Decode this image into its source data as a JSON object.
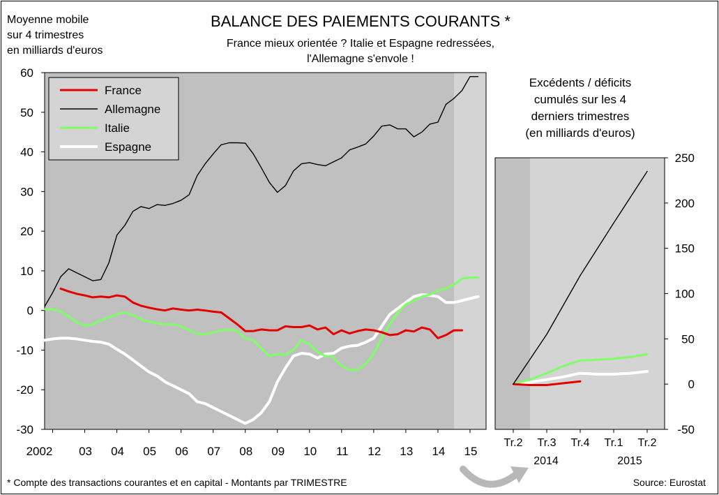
{
  "header": {
    "unit_line1": "Moyenne mobile",
    "unit_line2": "sur 4 trimestres",
    "unit_line3": "en milliards d'euros",
    "title": "BALANCE DES PAIEMENTS COURANTS *",
    "subtitle_line1": "France mieux orientée ? Italie et Espagne redressées,",
    "subtitle_line2": "l'Allemagne s'envole !"
  },
  "footer": {
    "footnote": "* Compte des transactions courantes et en capital - Montants par TRIMESTRE",
    "source": "Source: Eurostat"
  },
  "colors": {
    "France": "#e30000",
    "Allemagne": "#000000",
    "Italie": "#7fff66",
    "Espagne": "#ffffff",
    "plot_bg": "#c0c0c0",
    "plot_bg_light": "#d4d4d4"
  },
  "chart_data": [
    {
      "type": "line",
      "title": "",
      "ylabel": "Moyenne mobile sur 4 trimestres en milliards d'euros",
      "ylim": [
        -30,
        60
      ],
      "yticks": [
        -30,
        -20,
        -10,
        0,
        10,
        20,
        30,
        40,
        50,
        60
      ],
      "x_tick_labels": [
        "2002",
        "03",
        "04",
        "05",
        "06",
        "07",
        "08",
        "09",
        "10",
        "11",
        "12",
        "13",
        "14",
        "15"
      ],
      "xlim": [
        2001.75,
        2015.5
      ],
      "grid": false,
      "legend": "top-left",
      "series": [
        {
          "name": "France",
          "x": [
            2002.25,
            2002.5,
            2002.75,
            2003,
            2003.25,
            2003.5,
            2003.75,
            2004,
            2004.25,
            2004.5,
            2004.75,
            2005,
            2005.25,
            2005.5,
            2005.75,
            2006,
            2006.25,
            2006.5,
            2006.75,
            2007,
            2007.25,
            2007.5,
            2007.75,
            2008,
            2008.25,
            2008.5,
            2008.75,
            2009,
            2009.25,
            2009.5,
            2009.75,
            2010,
            2010.25,
            2010.5,
            2010.75,
            2011,
            2011.25,
            2011.5,
            2011.75,
            2012,
            2012.25,
            2012.5,
            2012.75,
            2013,
            2013.25,
            2013.5,
            2013.75,
            2014,
            2014.25,
            2014.5,
            2014.75
          ],
          "values": [
            5.5,
            4.8,
            4.2,
            3.8,
            3.3,
            3.5,
            3.3,
            3.8,
            3.5,
            2,
            1.2,
            0.7,
            0.3,
            0,
            0.5,
            0.2,
            0,
            0.2,
            0,
            -0.3,
            -0.5,
            -2,
            -3.5,
            -5.2,
            -5.2,
            -4.8,
            -5,
            -5,
            -4,
            -4.2,
            -4.2,
            -3.8,
            -4.8,
            -4.3,
            -6,
            -5,
            -5.8,
            -5.2,
            -4.8,
            -5,
            -5.5,
            -6.2,
            -6,
            -5,
            -5.3,
            -4.3,
            -4.8,
            -7,
            -6.2,
            -5,
            -5
          ]
        },
        {
          "name": "Allemagne",
          "x": [
            2001.75,
            2002,
            2002.25,
            2002.5,
            2002.75,
            2003,
            2003.25,
            2003.5,
            2003.75,
            2004,
            2004.25,
            2004.5,
            2004.75,
            2005,
            2005.25,
            2005.5,
            2005.75,
            2006,
            2006.25,
            2006.5,
            2006.75,
            2007,
            2007.25,
            2007.5,
            2007.75,
            2008,
            2008.25,
            2008.5,
            2008.75,
            2009,
            2009.25,
            2009.5,
            2009.75,
            2010,
            2010.25,
            2010.5,
            2010.75,
            2011,
            2011.25,
            2011.5,
            2011.75,
            2012,
            2012.25,
            2012.5,
            2012.75,
            2013,
            2013.25,
            2013.5,
            2013.75,
            2014,
            2014.25,
            2014.5,
            2014.75,
            2015,
            2015.25
          ],
          "values": [
            1,
            4.5,
            8.5,
            10.5,
            9.5,
            8.5,
            7.5,
            7.8,
            12,
            19,
            21.5,
            25,
            26.2,
            25.7,
            26.7,
            26.5,
            27,
            27.8,
            29.2,
            34,
            37,
            39.5,
            41.8,
            42.3,
            42.3,
            42.2,
            39.5,
            36,
            32.3,
            29.8,
            31.5,
            35.2,
            37,
            37.3,
            36.8,
            36.5,
            37.5,
            38.5,
            40.5,
            41.2,
            42,
            44,
            46.5,
            46.8,
            45.8,
            45.8,
            43.8,
            45,
            47,
            47.5,
            52,
            53.5,
            55.5,
            59,
            59
          ]
        },
        {
          "name": "Italie",
          "x": [
            2001.75,
            2002,
            2002.25,
            2002.5,
            2002.75,
            2003,
            2003.25,
            2003.5,
            2003.75,
            2004,
            2004.25,
            2004.5,
            2004.75,
            2005,
            2005.25,
            2005.5,
            2005.75,
            2006,
            2006.25,
            2006.5,
            2006.75,
            2007,
            2007.25,
            2007.5,
            2007.75,
            2008,
            2008.25,
            2008.5,
            2008.75,
            2009,
            2009.25,
            2009.5,
            2009.75,
            2010,
            2010.25,
            2010.5,
            2010.75,
            2011,
            2011.25,
            2011.5,
            2011.75,
            2012,
            2012.25,
            2012.5,
            2012.75,
            2013,
            2013.25,
            2013.5,
            2013.75,
            2014,
            2014.25,
            2014.5,
            2014.75,
            2015,
            2015.25
          ],
          "values": [
            0.3,
            0.3,
            -0.2,
            -1.5,
            -3,
            -3.8,
            -3.5,
            -2.5,
            -1.8,
            -1,
            -0.5,
            -1.2,
            -2.2,
            -2.8,
            -3.2,
            -3.5,
            -3.5,
            -4,
            -5,
            -5.8,
            -6,
            -5.5,
            -5,
            -4.8,
            -5.2,
            -7,
            -7.5,
            -9.5,
            -11.5,
            -11,
            -11.2,
            -10,
            -7.5,
            -8.5,
            -10.5,
            -11.5,
            -11.8,
            -14,
            -15,
            -15,
            -13.5,
            -11,
            -7,
            -3.5,
            -0.5,
            1.5,
            2.5,
            3.5,
            4,
            5,
            5.5,
            6.5,
            8,
            8.3,
            8.3
          ]
        },
        {
          "name": "Espagne",
          "x": [
            2001.75,
            2002,
            2002.25,
            2002.5,
            2002.75,
            2003,
            2003.25,
            2003.5,
            2003.75,
            2004,
            2004.25,
            2004.5,
            2004.75,
            2005,
            2005.25,
            2005.5,
            2005.75,
            2006,
            2006.25,
            2006.5,
            2006.75,
            2007,
            2007.25,
            2007.5,
            2007.75,
            2008,
            2008.25,
            2008.5,
            2008.75,
            2009,
            2009.25,
            2009.5,
            2009.75,
            2010,
            2010.25,
            2010.5,
            2010.75,
            2011,
            2011.25,
            2011.5,
            2011.75,
            2012,
            2012.25,
            2012.5,
            2012.75,
            2013,
            2013.25,
            2013.5,
            2013.75,
            2014,
            2014.25,
            2014.5,
            2014.75,
            2015,
            2015.25
          ],
          "values": [
            -7.5,
            -7.2,
            -7,
            -7,
            -7.2,
            -7.5,
            -7.8,
            -8,
            -8.5,
            -9.8,
            -11,
            -12.5,
            -14,
            -15.5,
            -16.5,
            -18,
            -19,
            -20,
            -21,
            -23,
            -23.5,
            -24.5,
            -25.5,
            -26.5,
            -27.5,
            -28.5,
            -27.5,
            -25.8,
            -23,
            -18,
            -14.5,
            -11.5,
            -10.8,
            -11,
            -12,
            -11,
            -10.8,
            -9.5,
            -9,
            -8.8,
            -8,
            -7,
            -4,
            -1,
            0.5,
            2,
            3.5,
            4,
            3.8,
            3.5,
            2,
            2,
            2.5,
            3,
            3.5
          ]
        }
      ],
      "projection_start": 2014.5
    },
    {
      "type": "line",
      "title": "Excédents / déficits cumulés sur les 4 derniers trimestres (en milliards d'euros)",
      "ylim": [
        -50,
        250
      ],
      "yticks": [
        -50,
        0,
        50,
        100,
        150,
        200,
        250
      ],
      "categories": [
        "Tr.2",
        "Tr.3",
        "Tr.4",
        "Tr.1",
        "Tr.2"
      ],
      "year_labels": [
        "2014",
        "2015"
      ],
      "series": [
        {
          "name": "France",
          "x": [
            0,
            0.5,
            1,
            1.5,
            2
          ],
          "values": [
            0,
            -1,
            -1,
            1,
            3
          ]
        },
        {
          "name": "Allemagne",
          "x": [
            0,
            1,
            2,
            3,
            4
          ],
          "values": [
            0,
            55,
            120,
            178,
            235
          ]
        },
        {
          "name": "Italie",
          "x": [
            0,
            0.5,
            1,
            1.5,
            2,
            2.5,
            3,
            3.5,
            4
          ],
          "values": [
            0,
            5,
            12,
            20,
            26,
            27,
            28,
            30,
            33
          ]
        },
        {
          "name": "Espagne",
          "x": [
            0,
            0.5,
            1,
            1.5,
            2,
            2.5,
            3,
            3.5,
            4
          ],
          "values": [
            0,
            2,
            5,
            8,
            12,
            11,
            11,
            12,
            14
          ]
        }
      ]
    }
  ],
  "arrow_icon": "curved-arrow-icon"
}
